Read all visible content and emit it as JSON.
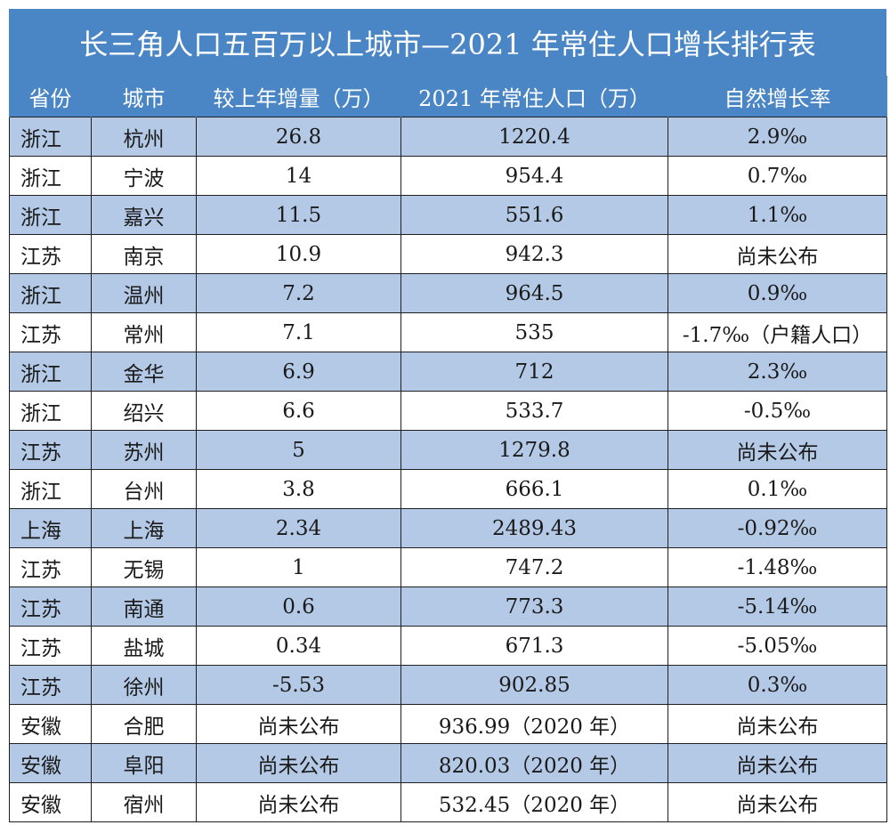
{
  "title": "长三角人口五百万以上城市—2021 年常住人口增长排行表",
  "columns": [
    "省份",
    "城市",
    "较上年增量（万）",
    "2021 年常住人口（万）",
    "自然增长率"
  ],
  "rows": [
    [
      "浙江",
      "杭州",
      "26.8",
      "1220.4",
      "2.9‰"
    ],
    [
      "浙江",
      "宁波",
      "14",
      "954.4",
      "0.7‰"
    ],
    [
      "浙江",
      "嘉兴",
      "11.5",
      "551.6",
      "1.1‰"
    ],
    [
      "江苏",
      "南京",
      "10.9",
      "942.3",
      "尚未公布"
    ],
    [
      "浙江",
      "温州",
      "7.2",
      "964.5",
      "0.9‰"
    ],
    [
      "江苏",
      "常州",
      "7.1",
      "535",
      "-1.7‰（户籍人口）"
    ],
    [
      "浙江",
      "金华",
      "6.9",
      "712",
      "2.3‰"
    ],
    [
      "浙江",
      "绍兴",
      "6.6",
      "533.7",
      "-0.5‰"
    ],
    [
      "江苏",
      "苏州",
      "5",
      "1279.8",
      "尚未公布"
    ],
    [
      "浙江",
      "台州",
      "3.8",
      "666.1",
      "0.1‰"
    ],
    [
      "上海",
      "上海",
      "2.34",
      "2489.43",
      "-0.92‰"
    ],
    [
      "江苏",
      "无锡",
      "1",
      "747.2",
      "-1.48‰"
    ],
    [
      "江苏",
      "南通",
      "0.6",
      "773.3",
      "-5.14‰"
    ],
    [
      "江苏",
      "盐城",
      "0.34",
      "671.3",
      "-5.05‰"
    ],
    [
      "江苏",
      "徐州",
      "-5.53",
      "902.85",
      "0.3‰"
    ],
    [
      "安徽",
      "合肥",
      "尚未公布",
      "936.99（2020 年）",
      "尚未公布"
    ],
    [
      "安徽",
      "阜阳",
      "尚未公布",
      "820.03（2020 年）",
      "尚未公布"
    ],
    [
      "安徽",
      "宿州",
      "尚未公布",
      "532.45（2020 年）",
      "尚未公布"
    ]
  ]
}
